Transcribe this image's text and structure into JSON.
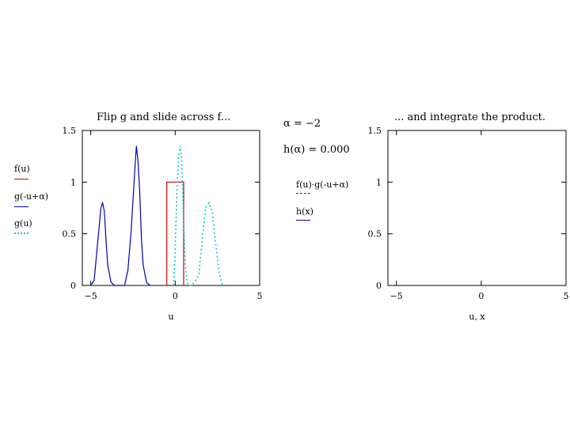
{
  "colors": {
    "f": "#cc0000",
    "g_shifted": "#0000aa",
    "g": "#00cccc",
    "product": "#cc0000",
    "h": "#0000aa"
  },
  "left_panel": {
    "title": "Flip g and slide across f...",
    "legend": [
      "f(u)",
      "g(-u+α)",
      "g(u)"
    ]
  },
  "middle": {
    "alpha_line": "α = −2",
    "h_line": "h(α) = 0.000"
  },
  "right_panel": {
    "title": "... and integrate the product.",
    "legend": [
      "f(u)·g(-u+α)",
      "h(x)"
    ]
  },
  "chart_data": [
    {
      "type": "line",
      "title": "Flip g and slide across f...",
      "xlabel": "u",
      "ylabel": "",
      "xlim": [
        -5.5,
        5
      ],
      "ylim": [
        0,
        1.5
      ],
      "xticks": [
        -5,
        0,
        5
      ],
      "yticks": [
        0,
        0.5,
        1,
        1.5
      ],
      "legend_placement": "left-outside",
      "series": [
        {
          "name": "f(u)",
          "style": "solid",
          "color": "#cc0000",
          "x": [
            -0.5,
            -0.5,
            0.5,
            0.5
          ],
          "y": [
            0,
            1,
            1,
            0
          ]
        },
        {
          "name": "g(-u+α)",
          "style": "solid",
          "color": "#0000aa",
          "x": [
            -5.0,
            -4.8,
            -4.6,
            -4.4,
            -4.3,
            -4.2,
            -4.1,
            -4.0,
            -3.8,
            -3.6,
            -3.4,
            -3.0,
            -2.8,
            -2.6,
            -2.4,
            -2.3,
            -2.2,
            -2.1,
            -2.0,
            -1.9,
            -1.7,
            -1.5
          ],
          "y": [
            0,
            0.05,
            0.4,
            0.75,
            0.8,
            0.72,
            0.45,
            0.2,
            0.03,
            0,
            0,
            0,
            0.15,
            0.55,
            1.1,
            1.35,
            1.2,
            0.9,
            0.45,
            0.2,
            0.03,
            0
          ]
        },
        {
          "name": "g(u)",
          "style": "dotted",
          "color": "#00cccc",
          "x": [
            -0.1,
            0.0,
            0.1,
            0.2,
            0.3,
            0.35,
            0.4,
            0.5,
            0.6,
            0.7,
            0.8,
            1.0,
            1.4,
            1.6,
            1.8,
            2.0,
            2.2,
            2.4,
            2.6,
            2.8
          ],
          "y": [
            0,
            0.35,
            0.9,
            1.25,
            1.35,
            1.3,
            1.1,
            0.6,
            0.2,
            0.03,
            0,
            0,
            0.1,
            0.45,
            0.75,
            0.8,
            0.7,
            0.4,
            0.12,
            0
          ]
        }
      ]
    },
    {
      "type": "line",
      "title": "... and integrate the product.",
      "xlabel": "u, x",
      "ylabel": "",
      "xlim": [
        -5.5,
        5
      ],
      "ylim": [
        0,
        1.5
      ],
      "xticks": [
        -5,
        0,
        5
      ],
      "yticks": [
        0,
        0.5,
        1,
        1.5
      ],
      "legend_placement": "left-outside",
      "series": [
        {
          "name": "f(u)·g(-u+α)",
          "style": "dashed",
          "color": "#cc0000",
          "x": [],
          "y": []
        },
        {
          "name": "h(x)",
          "style": "solid",
          "color": "#0000aa",
          "x": [],
          "y": []
        }
      ]
    }
  ]
}
